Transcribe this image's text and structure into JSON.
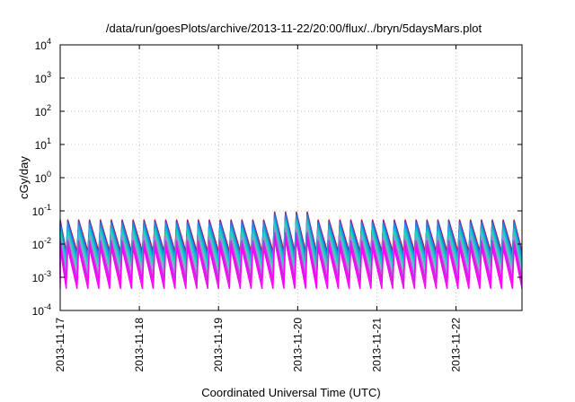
{
  "chart_data": {
    "type": "line",
    "title": "/data/run/goesPlots/archive/2013-11-22/20:00/flux/../bryn/5daysMars.plot",
    "xlabel": "Coordinated Universal Time (UTC)",
    "ylabel": "cGy/day",
    "y_scale": "log",
    "ylim": [
      0.0001,
      10000
    ],
    "xlim": [
      "2013-11-17T00:00",
      "2013-11-22T20:00"
    ],
    "grid": true,
    "legend": "none",
    "y_ticks": [
      {
        "base": "10",
        "exp": "-4",
        "value": 0.0001
      },
      {
        "base": "10",
        "exp": "-3",
        "value": 0.001
      },
      {
        "base": "10",
        "exp": "-2",
        "value": 0.01
      },
      {
        "base": "10",
        "exp": "-1",
        "value": 0.1
      },
      {
        "base": "10",
        "exp": "0",
        "value": 1
      },
      {
        "base": "10",
        "exp": "1",
        "value": 10
      },
      {
        "base": "10",
        "exp": "2",
        "value": 100
      },
      {
        "base": "10",
        "exp": "3",
        "value": 1000
      },
      {
        "base": "10",
        "exp": "4",
        "value": 10000
      }
    ],
    "x_ticks": [
      "2013-11-17",
      "2013-11-18",
      "2013-11-19",
      "2013-11-20",
      "2013-11-21",
      "2013-11-22"
    ],
    "pattern": {
      "period_hours": 3.3,
      "rise_fraction": 0.14,
      "note_event": {
        "start": "2013-11-19T15:00",
        "end": "2013-11-20T03:00",
        "peak_factor": 1.75
      }
    },
    "series": [
      {
        "color": "#e0141a",
        "peak": 0.055,
        "trough": 0.006
      },
      {
        "color": "#1f40e6",
        "peak": 0.05,
        "trough": 0.005
      },
      {
        "color": "#3a6fd8",
        "peak": 0.046,
        "trough": 0.0045
      },
      {
        "color": "#169fe0",
        "peak": 0.038,
        "trough": 0.0035
      },
      {
        "color": "#18c0d0",
        "peak": 0.03,
        "trough": 0.0026
      },
      {
        "color": "#20d8b0",
        "peak": 0.024,
        "trough": 0.0019
      },
      {
        "color": "#9a8fd0",
        "peak": 0.018,
        "trough": 0.0013
      },
      {
        "color": "#c030e0",
        "peak": 0.013,
        "trough": 0.0009
      },
      {
        "color": "#e010e8",
        "peak": 0.0095,
        "trough": 0.00065
      },
      {
        "color": "#ff00ff",
        "peak": 0.0075,
        "trough": 0.00045
      }
    ]
  }
}
